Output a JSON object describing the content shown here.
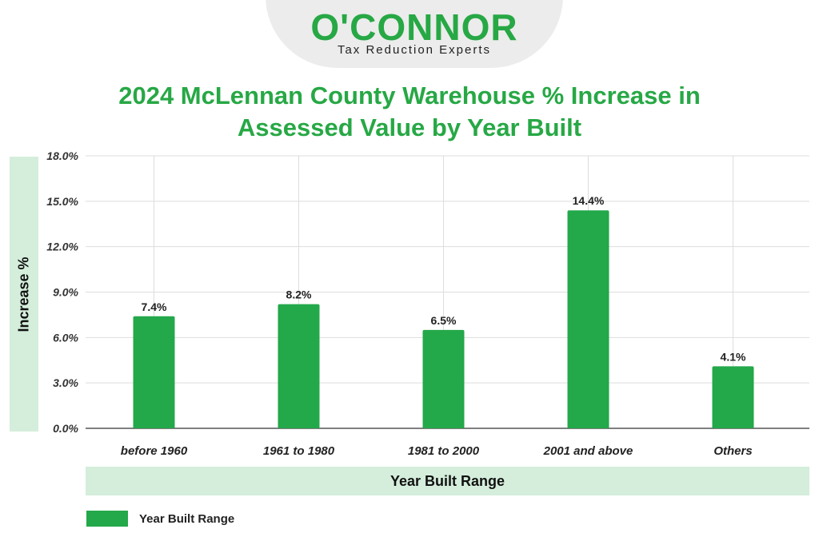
{
  "logo": {
    "name": "O'CONNOR",
    "tagline": "Tax Reduction Experts"
  },
  "colors": {
    "brand_green": "#27a845",
    "bar": "#23a84a",
    "band": "#d4eedb"
  },
  "chart_data": {
    "type": "bar",
    "title": "2024 McLennan County Warehouse % Increase in Assessed Value by Year Built",
    "title_lines": [
      "2024 McLennan County Warehouse % Increase in",
      "Assessed Value by Year Built"
    ],
    "xlabel": "Year Built Range",
    "ylabel": "Increase %",
    "categories": [
      "before 1960",
      "1961 to 1980",
      "1981 to 2000",
      "2001 and above",
      "Others"
    ],
    "series": [
      {
        "name": "Year Built Range",
        "values": [
          7.4,
          8.2,
          6.5,
          14.4,
          4.1
        ]
      }
    ],
    "data_labels": [
      "7.4%",
      "8.2%",
      "6.5%",
      "14.4%",
      "4.1%"
    ],
    "yticks": [
      0,
      3,
      6,
      9,
      12,
      15,
      18
    ],
    "ytick_labels": [
      "0.0%",
      "3.0%",
      "6.0%",
      "9.0%",
      "12.0%",
      "15.0%",
      "18.0%"
    ],
    "ylim": [
      0,
      18
    ],
    "grid": true,
    "legend_position": "bottom-left"
  }
}
